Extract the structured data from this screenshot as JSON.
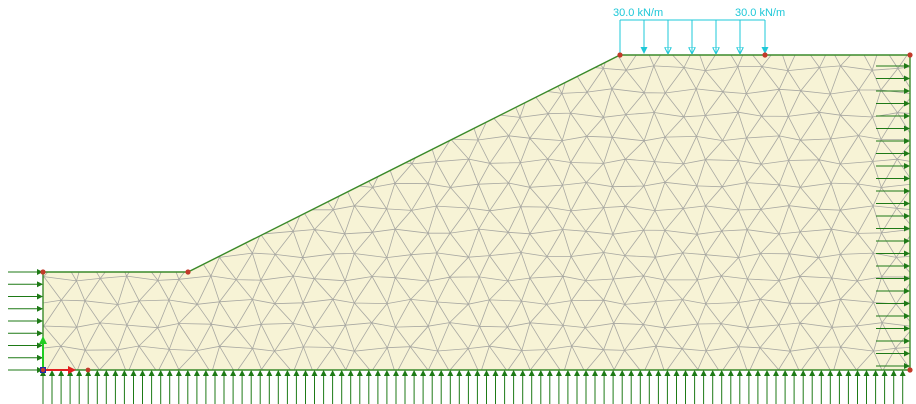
{
  "distributed_load": {
    "left_label": "30.0 kN/m",
    "right_label": "30.0 kN/m"
  },
  "colors": {
    "soil_fill": "#f7f3d6",
    "mesh_line": "#a8a8a2",
    "boundary": "#3a8a2a",
    "fixity_arrow": "#1e7a16",
    "load": "#1ec8d8",
    "point": "#c23a2a",
    "axis_x": "#e02020",
    "axis_y": "#22cc22",
    "axis_z": "#1a2ab0"
  }
}
